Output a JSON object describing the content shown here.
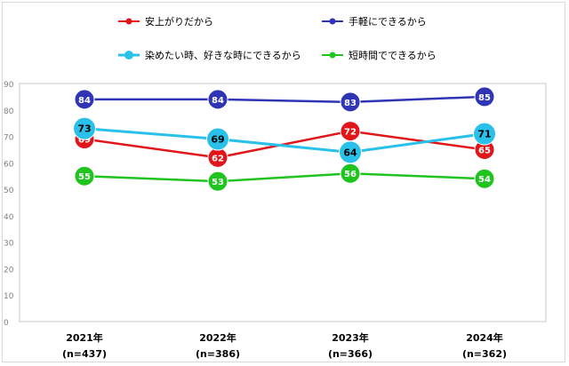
{
  "chart_data": {
    "type": "line",
    "categories": [
      "2021年",
      "2022年",
      "2023年",
      "2024年"
    ],
    "category_sublabels": [
      "(n=437)",
      "(n=386)",
      "(n=366)",
      "(n=362)"
    ],
    "ylim": [
      0,
      90
    ],
    "yticks": [
      0,
      10,
      20,
      30,
      40,
      50,
      60,
      70,
      80,
      90
    ],
    "grid": false,
    "legend_position": "top",
    "series": [
      {
        "name": "安上がりだから",
        "values": [
          69,
          62,
          72,
          65
        ],
        "color": "#e0161b"
      },
      {
        "name": "手軽にできるから",
        "values": [
          84,
          84,
          83,
          85
        ],
        "color": "#2f35b5"
      },
      {
        "name": "染めたい時、好きな時にできるから",
        "values": [
          73,
          69,
          64,
          71
        ],
        "color": "#29c1ea"
      },
      {
        "name": "短時間でできるから",
        "values": [
          55,
          53,
          56,
          54
        ],
        "color": "#1fc41f"
      }
    ]
  }
}
